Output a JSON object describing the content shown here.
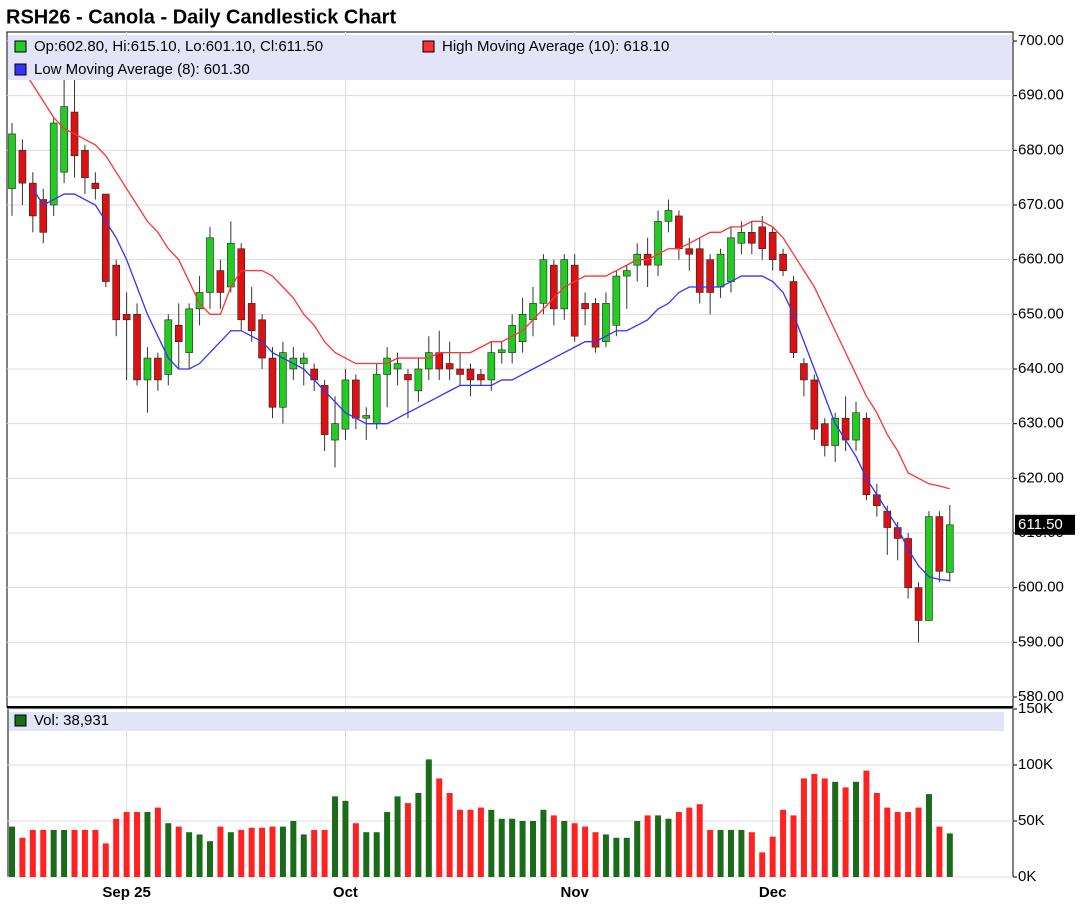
{
  "chart_data": {
    "type": "candlestick",
    "title": "RSH26 - Canola - Daily Candlestick Chart",
    "ohlc_legend": "Op:602.80, Hi:615.10, Lo:601.10, Cl:611.50",
    "up_color": "#22cc22",
    "down_color": "#dd1111",
    "categories": [
      null,
      null,
      null,
      null,
      null,
      null,
      null,
      null,
      null,
      null,
      null,
      "Sep 25",
      null,
      null,
      null,
      null,
      null,
      null,
      null,
      null,
      null,
      null,
      null,
      null,
      null,
      null,
      null,
      null,
      null,
      null,
      null,
      null,
      "Oct",
      null,
      null,
      null,
      null,
      null,
      null,
      null,
      null,
      null,
      null,
      null,
      null,
      null,
      null,
      null,
      null,
      null,
      null,
      null,
      null,
      null,
      "Nov",
      null,
      null,
      null,
      null,
      null,
      null,
      null,
      null,
      null,
      null,
      null,
      null,
      null,
      null,
      null,
      null,
      null,
      null,
      "Dec",
      null,
      null,
      null,
      null,
      null,
      null,
      null,
      null,
      null,
      null,
      null,
      null,
      null,
      null,
      null,
      null,
      null
    ],
    "open": [
      673,
      680,
      674,
      671,
      670,
      676,
      687,
      680,
      674,
      672,
      659,
      650,
      650,
      638,
      642,
      639,
      648,
      643,
      651,
      654,
      658,
      655,
      662,
      652,
      649,
      642,
      633,
      640,
      641,
      640,
      637,
      627,
      629,
      638,
      631,
      630,
      639,
      640,
      639,
      636,
      640,
      643,
      641,
      640,
      640,
      639,
      638,
      643,
      643,
      645,
      649,
      652,
      659,
      651,
      659,
      652,
      652,
      645,
      648,
      657,
      659,
      661,
      659,
      667,
      668,
      662,
      662,
      660,
      655,
      656,
      663,
      665,
      666,
      665,
      661,
      656,
      641,
      638,
      630,
      626,
      631,
      627,
      631,
      617,
      614,
      611,
      609,
      600,
      594,
      613,
      602.8
    ],
    "high": [
      685,
      682,
      676,
      673,
      686,
      694,
      697,
      681,
      676,
      672,
      660,
      654,
      652,
      644,
      643,
      650,
      652,
      652,
      657,
      666,
      660,
      667,
      663,
      655,
      650,
      644,
      645,
      644,
      643,
      641,
      638,
      635,
      640,
      639,
      633,
      641,
      644,
      643,
      640,
      642,
      646,
      647,
      645,
      643,
      641,
      640,
      645,
      645,
      650,
      653,
      655,
      661,
      660,
      661,
      661,
      654,
      653,
      654,
      658,
      659,
      663,
      664,
      669,
      671,
      669,
      664,
      664,
      661,
      662,
      666,
      667,
      667,
      668,
      666,
      662,
      657,
      642,
      639,
      631,
      632,
      635,
      634,
      632,
      619,
      615,
      612,
      610,
      601,
      614,
      614,
      615.1
    ],
    "low": [
      668,
      670,
      665,
      663,
      668,
      674,
      675,
      672,
      671,
      655,
      646,
      638,
      637,
      632,
      636,
      637,
      640,
      640,
      648,
      651,
      651,
      654,
      647,
      645,
      640,
      631,
      630,
      638,
      637,
      636,
      625,
      622,
      627,
      629,
      627,
      629,
      633,
      637,
      631,
      634,
      638,
      638,
      638,
      637,
      635,
      637,
      636,
      641,
      641,
      643,
      646,
      650,
      648,
      649,
      645,
      648,
      643,
      644,
      646,
      651,
      656,
      655,
      657,
      665,
      660,
      658,
      652,
      650,
      653,
      654,
      661,
      661,
      660,
      658,
      657,
      642,
      635,
      627,
      624,
      623,
      625,
      625,
      616,
      613,
      606,
      605,
      598,
      590,
      594,
      601,
      601.1
    ],
    "close": [
      683,
      674,
      668,
      665,
      685,
      688,
      679,
      675,
      673,
      656,
      649,
      649,
      638,
      642,
      638,
      649,
      645,
      651,
      654,
      664,
      654,
      663,
      649,
      647,
      642,
      633,
      643,
      642,
      642,
      638,
      628,
      630,
      638,
      631,
      631.5,
      639,
      642,
      641,
      638,
      640,
      643,
      640,
      640,
      639,
      638,
      638,
      643,
      643.5,
      648,
      650,
      652,
      660,
      651,
      660,
      646,
      651,
      644,
      652,
      657,
      658,
      661,
      659,
      667,
      669,
      662,
      661,
      654,
      654,
      661,
      664,
      665,
      663,
      662,
      660,
      658,
      643,
      638,
      629,
      626,
      631,
      627,
      632,
      617,
      615,
      611,
      609,
      600,
      594,
      613,
      603,
      611.5
    ],
    "ylim": [
      580,
      700
    ],
    "yticks": [
      {
        "value": 580,
        "label": "580.00"
      },
      {
        "value": 590,
        "label": "590.00"
      },
      {
        "value": 600,
        "label": "600.00"
      },
      {
        "value": 610,
        "label": "610.00"
      },
      {
        "value": 620,
        "label": "620.00"
      },
      {
        "value": 630,
        "label": "630.00"
      },
      {
        "value": 640,
        "label": "640.00"
      },
      {
        "value": 650,
        "label": "650.00"
      },
      {
        "value": 660,
        "label": "660.00"
      },
      {
        "value": 670,
        "label": "670.00"
      },
      {
        "value": 680,
        "label": "680.00"
      },
      {
        "value": 690,
        "label": "690.00"
      },
      {
        "value": 700,
        "label": "700.00"
      }
    ],
    "last_price": {
      "value": 611.5,
      "label": "611.50"
    },
    "grid": true,
    "series": [
      {
        "name": "High Moving Average (10): 618.10",
        "color": "#ff3333",
        "values": [
          null,
          695,
          692,
          689,
          686,
          684,
          683,
          682,
          681,
          679,
          676,
          673,
          670,
          667,
          665,
          662,
          660,
          656,
          652,
          650,
          650,
          655,
          658,
          658,
          658,
          657,
          655,
          653,
          650,
          648,
          645,
          643,
          642,
          641,
          641,
          641,
          641,
          642,
          642,
          642,
          642,
          643,
          643,
          643,
          643,
          644,
          645,
          645,
          646,
          647,
          649,
          651,
          653,
          655,
          656,
          657,
          657,
          657,
          658,
          659,
          660,
          660,
          661,
          662,
          662,
          663,
          664,
          665,
          665,
          666,
          666,
          667,
          667,
          666,
          664,
          661,
          658,
          655,
          651,
          647,
          643,
          639,
          635,
          632,
          628,
          625,
          621,
          620,
          619,
          618.6,
          618.1
        ]
      },
      {
        "name": "Low Moving Average (8): 601.30",
        "color": "#3333ff",
        "values": [
          null,
          null,
          673,
          670,
          671,
          672,
          672,
          671,
          670,
          667,
          664,
          660,
          655,
          650,
          646,
          642,
          640,
          640,
          641,
          643,
          645,
          647,
          647,
          646,
          645,
          643,
          642,
          641,
          640,
          638,
          636,
          634,
          632,
          631,
          630,
          630,
          630,
          631,
          632,
          633,
          634,
          635,
          636,
          637,
          637,
          637,
          637,
          638,
          638,
          639,
          640,
          641,
          642,
          643,
          644,
          645,
          645,
          646,
          647,
          647,
          648,
          649,
          651,
          652,
          654,
          655,
          655,
          655,
          655,
          656,
          657,
          657,
          657,
          656,
          654,
          650,
          645,
          640,
          635,
          630,
          627,
          624,
          620,
          617,
          614,
          611,
          607,
          604,
          602,
          601.5,
          601.3
        ]
      }
    ],
    "volume": {
      "label": "Vol: 38,931",
      "legend_color": "#1a6b1a",
      "up_color": "#1a6b1a",
      "down_color": "#ff2222",
      "values": [
        45000,
        35000,
        42000,
        42000,
        42000,
        42000,
        42000,
        42000,
        42000,
        30000,
        52000,
        58000,
        58000,
        58000,
        62000,
        48000,
        45000,
        40000,
        38000,
        32000,
        45000,
        40000,
        42000,
        44000,
        44000,
        45000,
        45000,
        50000,
        38000,
        42000,
        42000,
        72000,
        68000,
        48000,
        40000,
        40000,
        58000,
        72000,
        66000,
        75000,
        105000,
        88000,
        75000,
        60000,
        60000,
        62000,
        60000,
        52000,
        52000,
        50000,
        50000,
        60000,
        55000,
        50000,
        48000,
        45000,
        40000,
        38000,
        35000,
        35000,
        50000,
        55000,
        55000,
        52000,
        58000,
        62000,
        65000,
        42000,
        42000,
        42000,
        42000,
        40000,
        22000,
        36000,
        60000,
        55000,
        88000,
        92000,
        88000,
        85000,
        80000,
        85000,
        95000,
        75000,
        62000,
        58000,
        58000,
        62000,
        74000,
        45000,
        38931
      ],
      "ylim": [
        0,
        150000
      ],
      "yticks": [
        {
          "value": 0,
          "label": "0K"
        },
        {
          "value": 50000,
          "label": "50K"
        },
        {
          "value": 100000,
          "label": "100K"
        },
        {
          "value": 150000,
          "label": "150K"
        }
      ]
    }
  }
}
